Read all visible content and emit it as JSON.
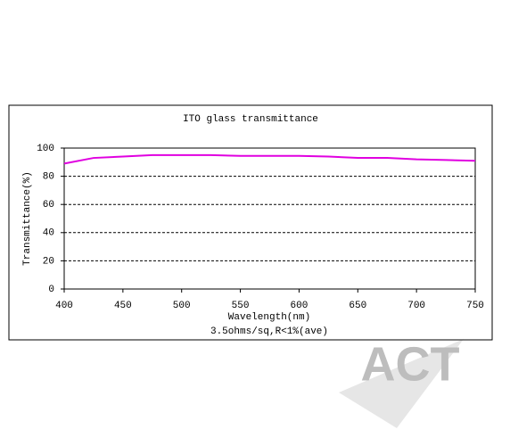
{
  "chart_data": {
    "type": "line",
    "title": "ITO glass transmittance",
    "x_label": "Wavelength(nm)",
    "y_label": "Transmittance(%)",
    "annotation": "3.5ohms/sq,R<1%(ave)",
    "x": [
      400,
      425,
      450,
      475,
      500,
      525,
      550,
      575,
      600,
      625,
      650,
      675,
      700,
      725,
      750
    ],
    "series": [
      {
        "name": "Transmittance",
        "color": "#e000e0",
        "values": [
          89,
          93,
          94,
          95,
          95,
          95,
          94.5,
          94.5,
          94.5,
          94,
          93,
          93,
          92,
          91.5,
          91
        ]
      }
    ],
    "xlim": [
      400,
      750
    ],
    "xticks": [
      400,
      450,
      500,
      550,
      600,
      650,
      700,
      750
    ],
    "ylim": [
      0,
      100
    ],
    "yticks": [
      0,
      20,
      40,
      60,
      80,
      100
    ],
    "grid": true
  },
  "watermark": "ACT"
}
